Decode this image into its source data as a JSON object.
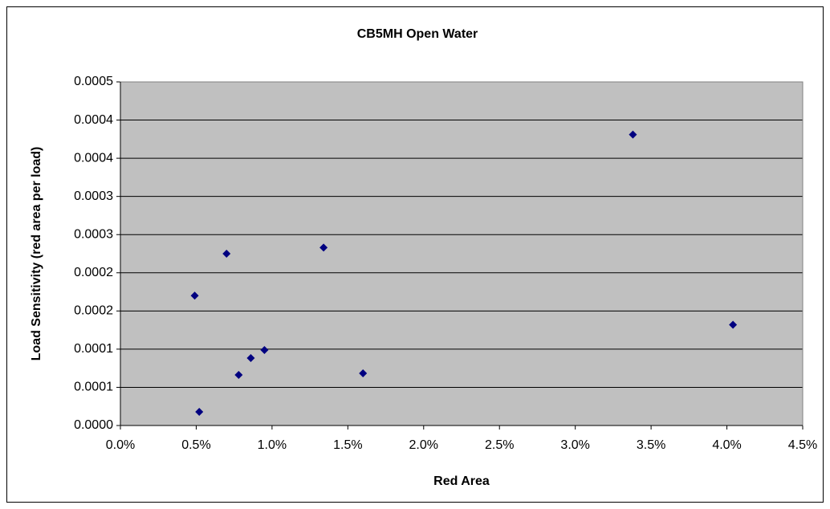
{
  "chart_data": {
    "type": "scatter",
    "title": "CB5MH Open Water",
    "x_label": "Red Area",
    "y_label": "Load Sensitivity (red area per load)",
    "x": [
      0.49,
      0.52,
      0.7,
      0.78,
      0.86,
      0.95,
      1.34,
      1.6,
      3.38,
      4.04
    ],
    "values": [
      0.00017,
      1.79e-05,
      0.000225,
      6.62e-05,
      8.83e-05,
      9.88e-05,
      0.000233,
      6.83e-05,
      0.000381,
      0.000132
    ],
    "color": "#000080",
    "background": "#c0c0c0",
    "grid": true,
    "xlim": [
      0,
      4.5
    ],
    "xticks": [
      {
        "value": 0,
        "label": "0.0%"
      },
      {
        "value": 0.5,
        "label": "0.5%"
      },
      {
        "value": 1,
        "label": "1.0%"
      },
      {
        "value": 1.5,
        "label": "1.5%"
      },
      {
        "value": 2,
        "label": "2.0%"
      },
      {
        "value": 2.5,
        "label": "2.5%"
      },
      {
        "value": 3,
        "label": "3.0%"
      },
      {
        "value": 3.5,
        "label": "3.5%"
      },
      {
        "value": 4,
        "label": "4.0%"
      },
      {
        "value": 4.5,
        "label": "4.5%"
      }
    ],
    "ylim": [
      0,
      0.00045
    ],
    "yticks": [
      {
        "value": 0,
        "label": "0.0000"
      },
      {
        "value": 5e-05,
        "label": "0.0001"
      },
      {
        "value": 0.0001,
        "label": "0.0001"
      },
      {
        "value": 0.00015,
        "label": "0.0002"
      },
      {
        "value": 0.0002,
        "label": "0.0002"
      },
      {
        "value": 0.00025,
        "label": "0.0003"
      },
      {
        "value": 0.0003,
        "label": "0.0003"
      },
      {
        "value": 0.00035,
        "label": "0.0004"
      },
      {
        "value": 0.0004,
        "label": "0.0004"
      },
      {
        "value": 0.00045,
        "label": "0.0005"
      }
    ]
  }
}
